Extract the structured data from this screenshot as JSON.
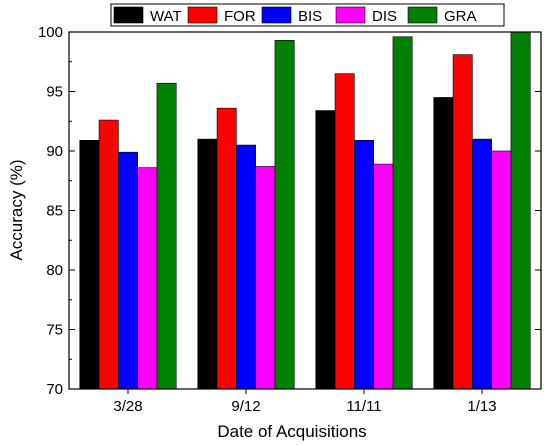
{
  "chart_data": {
    "type": "bar",
    "categories": [
      "3/28",
      "9/12",
      "11/11",
      "1/13"
    ],
    "series": [
      {
        "name": "WAT",
        "color": "#000000",
        "values": [
          90.9,
          91.0,
          93.4,
          94.5
        ]
      },
      {
        "name": "FOR",
        "color": "#ff0000",
        "values": [
          92.6,
          93.6,
          96.5,
          98.1
        ]
      },
      {
        "name": "BIS",
        "color": "#0000ff",
        "values": [
          89.9,
          90.5,
          90.9,
          91.0
        ]
      },
      {
        "name": "DIS",
        "color": "#ff00ff",
        "values": [
          88.6,
          88.7,
          88.9,
          90.0
        ]
      },
      {
        "name": "GRA",
        "color": "#008000",
        "values": [
          95.7,
          99.3,
          99.6,
          100.0
        ]
      }
    ],
    "xlabel": "Date of Acquisitions",
    "ylabel": "Accuracy (%)",
    "ylim": [
      70,
      100
    ],
    "yticks": [
      "70",
      "75",
      "80",
      "85",
      "90",
      "95",
      "100"
    ],
    "legend_position": "top",
    "grid": false
  }
}
